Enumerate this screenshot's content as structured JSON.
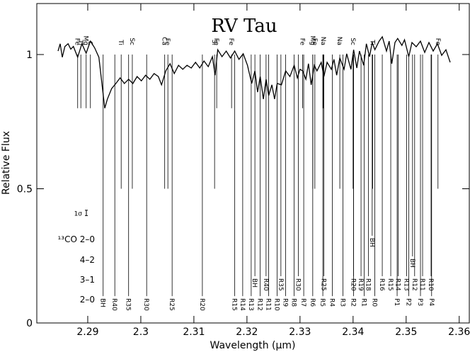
{
  "chart_data": {
    "type": "spectrum",
    "title": "RV Tau",
    "x_label": "Wavelength (μm)",
    "y_label": "Relative Flux",
    "xlim": [
      2.2804,
      2.3619
    ],
    "ylim": [
      0,
      1.19
    ],
    "xticks": [
      2.29,
      2.3,
      2.31,
      2.32,
      2.33,
      2.34,
      2.35,
      2.36
    ],
    "yticks": [
      0,
      0.5,
      1
    ],
    "series": [
      {
        "color": "#000000",
        "x": [
          2.2844,
          2.2848,
          2.2852,
          2.2857,
          2.2863,
          2.2868,
          2.2873,
          2.2881,
          2.2889,
          2.2897,
          2.2905,
          2.2913,
          2.2921,
          2.2927,
          2.2932,
          2.2937,
          2.2945,
          2.2953,
          2.2961,
          2.2969,
          2.2977,
          2.2985,
          2.2993,
          2.3001,
          2.3009,
          2.3017,
          2.3025,
          2.3033,
          2.3039,
          2.3047,
          2.3055,
          2.3063,
          2.3071,
          2.3079,
          2.3087,
          2.3095,
          2.3103,
          2.3111,
          2.3119,
          2.3127,
          2.3135,
          2.314,
          2.3145,
          2.3153,
          2.3161,
          2.3169,
          2.3177,
          2.3185,
          2.3193,
          2.3201,
          2.3209,
          2.3215,
          2.322,
          2.3225,
          2.3231,
          2.3236,
          2.3241,
          2.3247,
          2.3252,
          2.3257,
          2.3265,
          2.3273,
          2.3281,
          2.3289,
          2.3295,
          2.33,
          2.3305,
          2.3311,
          2.3316,
          2.3321,
          2.3327,
          2.3332,
          2.334,
          2.3345,
          2.3351,
          2.3359,
          2.3364,
          2.3369,
          2.3375,
          2.3383,
          2.3388,
          2.3396,
          2.3401,
          2.3407,
          2.3412,
          2.342,
          2.3425,
          2.3431,
          2.3436,
          2.3441,
          2.3449,
          2.3455,
          2.3463,
          2.3468,
          2.3473,
          2.3479,
          2.3484,
          2.3492,
          2.3497,
          2.3505,
          2.3511,
          2.3519,
          2.3527,
          2.3535,
          2.3543,
          2.3551,
          2.3559,
          2.3567,
          2.3575,
          2.3583
        ],
        "values": [
          1.013,
          1.04,
          0.99,
          1.03,
          1.04,
          1.02,
          1.03,
          0.99,
          1.04,
          1.005,
          1.05,
          1.025,
          0.99,
          0.887,
          0.8,
          0.834,
          0.873,
          0.892,
          0.913,
          0.892,
          0.908,
          0.892,
          0.918,
          0.902,
          0.923,
          0.908,
          0.929,
          0.918,
          0.887,
          0.939,
          0.966,
          0.929,
          0.96,
          0.945,
          0.96,
          0.95,
          0.971,
          0.95,
          0.976,
          0.955,
          0.992,
          0.923,
          1.018,
          0.992,
          1.013,
          0.987,
          1.013,
          0.982,
          1.003,
          0.96,
          0.892,
          0.939,
          0.86,
          0.918,
          0.834,
          0.908,
          0.847,
          0.887,
          0.834,
          0.892,
          0.887,
          0.939,
          0.918,
          0.96,
          0.913,
          0.945,
          0.939,
          0.908,
          0.966,
          0.887,
          0.96,
          0.939,
          0.971,
          0.918,
          0.971,
          0.945,
          0.982,
          0.923,
          0.987,
          0.945,
          1.003,
          0.945,
          1.018,
          0.95,
          1.013,
          0.96,
          1.04,
          0.992,
          1.045,
          1.018,
          1.05,
          1.066,
          1.013,
          1.05,
          0.966,
          1.045,
          1.06,
          1.034,
          1.055,
          0.992,
          1.045,
          1.029,
          1.05,
          1.008,
          1.045,
          1.013,
          1.04,
          0.997,
          1.018,
          0.971
        ]
      }
    ],
    "line_top": 1,
    "atomic_lines": [
      {
        "label": "Fe",
        "wavelength": 2.2881,
        "depth": 0.8
      },
      {
        "label": "Ti",
        "wavelength": 2.2887,
        "depth": 0.8
      },
      {
        "label": "Mg",
        "wavelength": 2.2897,
        "depth": 0.8
      },
      {
        "label": "C",
        "wavelength": 2.2905,
        "depth": 0.8
      },
      {
        "label": "Ti",
        "wavelength": 2.2963,
        "depth": 0.5
      },
      {
        "label": "Sc",
        "wavelength": 2.2984,
        "depth": 0.5
      },
      {
        "label": "Ca",
        "wavelength": 2.3045,
        "depth": 0.5
      },
      {
        "label": "Fe",
        "wavelength": 2.3051,
        "depth": 0.5
      },
      {
        "label": "Si",
        "wavelength": 2.3139,
        "depth": 0.5
      },
      {
        "label": "Fe",
        "wavelength": 2.3143,
        "depth": 0.8
      },
      {
        "label": "Fe",
        "wavelength": 2.3171,
        "depth": 0.8
      },
      {
        "label": "Fe",
        "wavelength": 2.3305,
        "depth": 0.8
      },
      {
        "label": "Mg",
        "wavelength": 2.3324,
        "depth": 0.5
      },
      {
        "label": "Fe",
        "wavelength": 2.3328,
        "depth": 0.5
      },
      {
        "label": "Na",
        "wavelength": 2.3344,
        "depth": 0.8
      },
      {
        "label": "Na",
        "wavelength": 2.3375,
        "depth": 0.5
      },
      {
        "label": "Sc",
        "wavelength": 2.34,
        "depth": 0.5
      },
      {
        "label": "Ti",
        "wavelength": 2.3437,
        "depth": 0.5
      },
      {
        "label": "Fe",
        "wavelength": 2.356,
        "depth": 0.5
      }
    ],
    "bands": [
      {
        "label": "2–0",
        "level": 0.1,
        "lines": [
          {
            "label": "BH",
            "wavelength": 2.2929
          },
          {
            "label": "R40",
            "wavelength": 2.2951
          },
          {
            "label": "R35",
            "wavelength": 2.2977
          },
          {
            "label": "R30",
            "wavelength": 2.3011
          },
          {
            "label": "R25",
            "wavelength": 2.3059
          },
          {
            "label": "R20",
            "wavelength": 2.3116
          },
          {
            "label": "R15",
            "wavelength": 2.3177
          },
          {
            "label": "R14",
            "wavelength": 2.3192
          },
          {
            "label": "R13",
            "wavelength": 2.3208
          },
          {
            "label": "R12",
            "wavelength": 2.3225
          },
          {
            "label": "R11",
            "wavelength": 2.3241
          },
          {
            "label": "R10",
            "wavelength": 2.3257
          },
          {
            "label": "R9",
            "wavelength": 2.3273
          },
          {
            "label": "R8",
            "wavelength": 2.3289
          },
          {
            "label": "R7",
            "wavelength": 2.3307
          },
          {
            "label": "R6",
            "wavelength": 2.3324
          },
          {
            "label": "R5",
            "wavelength": 2.3343
          },
          {
            "label": "R4",
            "wavelength": 2.3361
          },
          {
            "label": "R3",
            "wavelength": 2.3381
          },
          {
            "label": "R2",
            "wavelength": 2.3401
          },
          {
            "label": "R1",
            "wavelength": 2.3421
          },
          {
            "label": "R0",
            "wavelength": 2.3441
          },
          {
            "label": "P1",
            "wavelength": 2.3483
          },
          {
            "label": "P2",
            "wavelength": 2.3505
          },
          {
            "label": "P3",
            "wavelength": 2.3527
          },
          {
            "label": "P4",
            "wavelength": 2.3548
          }
        ]
      },
      {
        "label": "3–1",
        "level": 0.174,
        "lines": [
          {
            "label": "BH",
            "wavelength": 2.3215
          },
          {
            "label": "R40",
            "wavelength": 2.3236
          },
          {
            "label": "R35",
            "wavelength": 2.3264
          },
          {
            "label": "R30",
            "wavelength": 2.3297
          },
          {
            "label": "R25",
            "wavelength": 2.3345
          },
          {
            "label": "R20",
            "wavelength": 2.3401
          },
          {
            "label": "R19",
            "wavelength": 2.3415
          },
          {
            "label": "R18",
            "wavelength": 2.3429
          },
          {
            "label": "R16",
            "wavelength": 2.3455
          },
          {
            "label": "R15",
            "wavelength": 2.3471
          },
          {
            "label": "R14",
            "wavelength": 2.3485
          },
          {
            "label": "R13",
            "wavelength": 2.3501
          },
          {
            "label": "R12",
            "wavelength": 2.3516
          },
          {
            "label": "R11",
            "wavelength": 2.3531
          },
          {
            "label": "R10",
            "wavelength": 2.3547
          }
        ]
      },
      {
        "label": "4–2",
        "level": 0.248,
        "lines": [
          {
            "label": "BH",
            "wavelength": 2.3512
          }
        ]
      },
      {
        "label": "¹³CO 2–0",
        "level": 0.325,
        "lines": [
          {
            "label": "BH",
            "wavelength": 2.3436
          }
        ]
      }
    ],
    "sigma": {
      "label": "1σ",
      "value": 0.01,
      "center": 0.41
    }
  }
}
